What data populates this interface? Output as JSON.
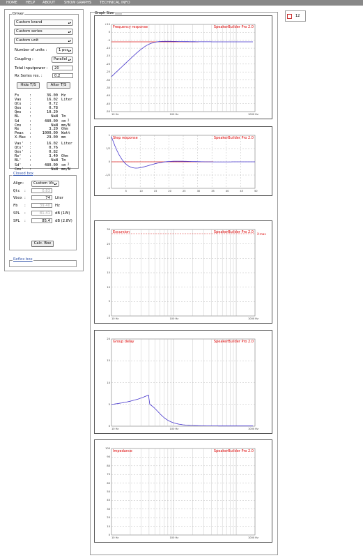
{
  "nav": {
    "items": [
      "HOME",
      "HELP",
      "ABOUT",
      "SHOW GRAPHS",
      "TECHNICAL INFO"
    ]
  },
  "driver": {
    "legend": "Driver",
    "brand": "Custom brand",
    "series": "Custom series",
    "unit": "Custom unit",
    "units_label": "Number of units :",
    "units_value": "1 pcs",
    "coupling_label": "Coupling :",
    "coupling_value": "Parallel",
    "power_label": "Total inputpower :",
    "power_value": "20",
    "rx_label": "Rx Series res. :",
    "rx_value": "0.2",
    "hide_btn": "Hide T/S",
    "alter_btn": "Alter T/S",
    "ts_params": [
      {
        "name": "Fs",
        "value": "36.00",
        "unit": "Hz"
      },
      {
        "name": "Vas",
        "value": "16.02",
        "unit": "Liter"
      },
      {
        "name": "Qts",
        "value": "0.72",
        "unit": ""
      },
      {
        "name": "Qes",
        "value": "0.78",
        "unit": ""
      },
      {
        "name": "Qms",
        "value": "10.20",
        "unit": ""
      },
      {
        "name": "BL",
        "value": "NaN",
        "unit": "Tm"
      },
      {
        "name": "Sd",
        "value": "480.00",
        "unit": "cm",
        "sup": "2"
      },
      {
        "name": "Cms",
        "value": "NaN",
        "unit": "mm/N"
      },
      {
        "name": "Re",
        "value": "3.20",
        "unit": "Ohm"
      },
      {
        "name": "Pmax",
        "value": "1000.00",
        "unit": "Watt"
      },
      {
        "name": "X-Max",
        "value": "29.00",
        "unit": "mm"
      },
      {
        "name": "Vas'",
        "value": "16.02",
        "unit": "Liter"
      },
      {
        "name": "Qts'",
        "value": "0.76",
        "unit": ""
      },
      {
        "name": "Qes'",
        "value": "0.82",
        "unit": ""
      },
      {
        "name": "Re'",
        "value": "3.40",
        "unit": "Ohm"
      },
      {
        "name": "BL'",
        "value": "NaN",
        "unit": "Tm"
      },
      {
        "name": "Sd'",
        "value": "480.00",
        "unit": "cm",
        "sup": "2"
      },
      {
        "name": "Cms'",
        "value": "NaN",
        "unit": "mm/N"
      }
    ]
  },
  "closed_box": {
    "legend": "Closed box",
    "align_label": "Align:",
    "align_value": "Custom Vb",
    "qtc_label": "Qtc",
    "qtc_value": "0.83",
    "vbox_label": "Vbox",
    "vbox_value": "74",
    "vbox_unit": "Liter",
    "fb_label": "Fb",
    "fb_value": "39.40",
    "fb_unit": "Hz",
    "spl1_label": "SPL",
    "spl1_value": "81.41",
    "spl1_unit": "dB (1W)",
    "spl2_label": "SPL",
    "spl2_value": "85.4",
    "spl2_unit": "dB (2.8V)",
    "calc_btn": "Calc. Box"
  },
  "reflex_box": {
    "legend": "Reflex box"
  },
  "graphs_header": {
    "label": "Graph Size",
    "size_value": "12"
  },
  "graphs": [
    {
      "title": "Frequency response",
      "brand": "SpeakerBuilder Pro 2.0",
      "yticks": [
        "+10",
        "0",
        "-5",
        "-10",
        "-15",
        "-20",
        "-25",
        "-30",
        "-35",
        "-40",
        "-45",
        "-50"
      ],
      "xticks": [
        "10 Hz",
        "100 Hz",
        "1000 Hz"
      ]
    },
    {
      "title": "Step response",
      "brand": "SpeakerBuilder Pro 2.0",
      "yticks": [
        "1",
        "1/2",
        "0",
        "-1/2",
        "-1"
      ],
      "xticks": [
        "5",
        "10",
        "15",
        "20",
        "25",
        "30",
        "35",
        "40",
        "45",
        "50"
      ]
    },
    {
      "title": "Excursion",
      "brand": "SpeakerBuilder Pro 2.0",
      "marker": "X-max",
      "yticks": [
        "30",
        "25",
        "20",
        "15",
        "10",
        "5",
        "0"
      ],
      "xticks": [
        "10 Hz",
        "100 Hz",
        "1000 Hz"
      ]
    },
    {
      "title": "Group delay",
      "brand": "SpeakerBuilder Pro 2.0",
      "yticks": [
        "20",
        "15",
        "10",
        "5",
        "0"
      ],
      "xticks": [
        "10 Hz",
        "100 Hz",
        "1000 Hz"
      ]
    },
    {
      "title": "Impedance",
      "brand": "SpeakerBuilder Pro 2.0",
      "yticks": [
        "100",
        "90",
        "80",
        "70",
        "60",
        "50",
        "40",
        "30",
        "20",
        "10",
        "0"
      ],
      "xticks": [
        "10 Hz",
        "100 Hz",
        "1000 Hz"
      ]
    }
  ],
  "colors": {
    "curve": "#4433cc",
    "reference": "#dd2222",
    "title": "#dd0000",
    "nav": "#888888"
  }
}
